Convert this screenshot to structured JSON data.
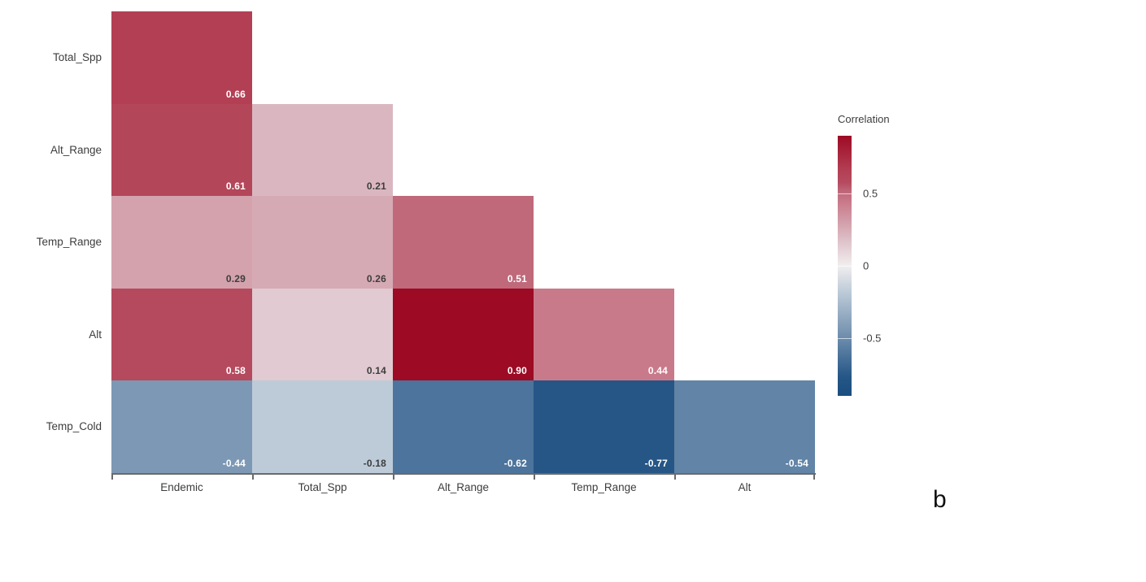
{
  "chart_data": {
    "type": "heatmap",
    "rows": [
      "Total_Spp",
      "Alt_Range",
      "Temp_Range",
      "Alt",
      "Temp_Cold"
    ],
    "cols": [
      "Endemic",
      "Total_Spp",
      "Alt_Range",
      "Temp_Range",
      "Alt"
    ],
    "values": [
      [
        0.66,
        null,
        null,
        null,
        null
      ],
      [
        0.61,
        0.21,
        null,
        null,
        null
      ],
      [
        0.29,
        0.26,
        0.51,
        null,
        null
      ],
      [
        0.58,
        0.14,
        0.9,
        0.44,
        null
      ],
      [
        -0.44,
        -0.18,
        -0.62,
        -0.77,
        -0.54
      ]
    ],
    "legend": {
      "title": "Correlation",
      "domain": [
        -0.9,
        0.9
      ],
      "ticks": [
        {
          "value": 0.5,
          "label": "0.5"
        },
        {
          "value": 0,
          "label": "0"
        },
        {
          "value": -0.5,
          "label": "-0.5"
        }
      ]
    },
    "colormap": [
      {
        "v": -0.9,
        "c": "#194e7f"
      },
      {
        "v": -0.77,
        "c": "#255686"
      },
      {
        "v": -0.54,
        "c": "#6184a7"
      },
      {
        "v": -0.44,
        "c": "#7c98b4"
      },
      {
        "v": -0.18,
        "c": "#bdcbd9"
      },
      {
        "v": 0.0,
        "c": "#f1eeee"
      },
      {
        "v": 0.14,
        "c": "#e1cad1"
      },
      {
        "v": 0.29,
        "c": "#d3a2ad"
      },
      {
        "v": 0.44,
        "c": "#c97a8a"
      },
      {
        "v": 0.51,
        "c": "#bf697b"
      },
      {
        "v": 0.58,
        "c": "#b54a5e"
      },
      {
        "v": 0.66,
        "c": "#b33f54"
      },
      {
        "v": 0.9,
        "c": "#9d0a24"
      }
    ],
    "label_colors": {
      "light": "#ffffff",
      "dark": "#3d3d3d"
    },
    "axis_colors": {
      "line": "#6a6a6a",
      "text": "#3d3d3d"
    },
    "panel_label": "b"
  }
}
